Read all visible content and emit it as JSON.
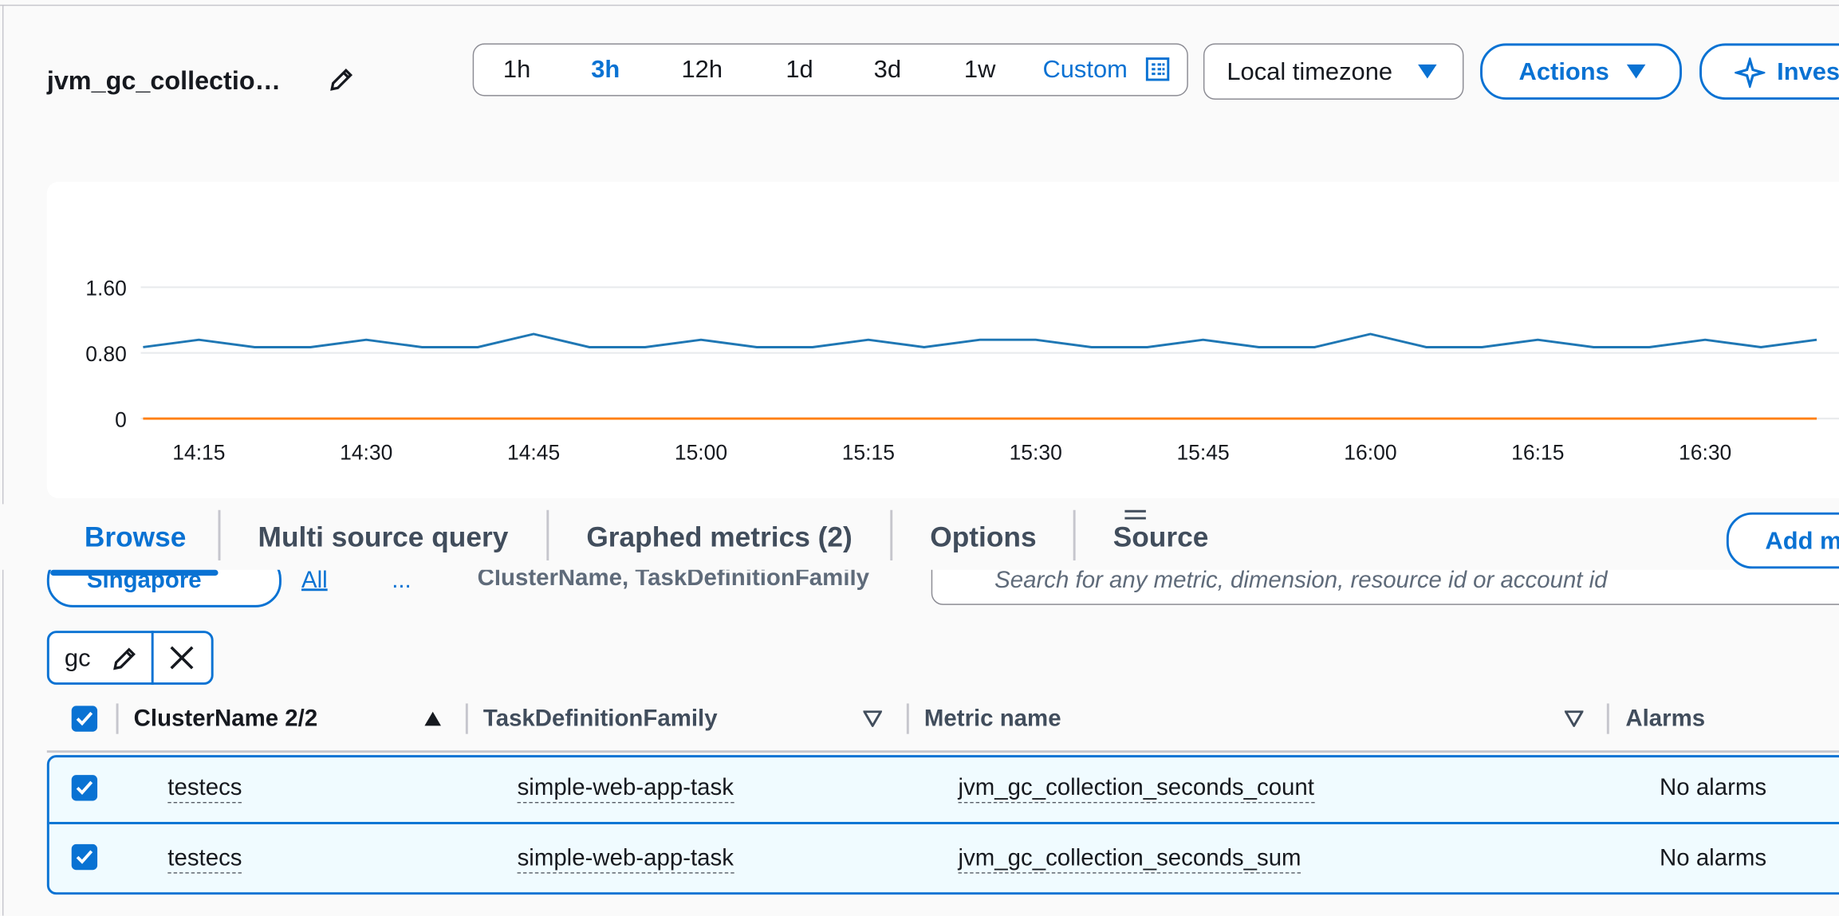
{
  "header": {
    "title": "jvm_gc_collectio…",
    "time_ranges": [
      "1h",
      "3h",
      "12h",
      "1d",
      "3d",
      "1w"
    ],
    "custom": "Custom",
    "timezone": "Local timezone",
    "actions": "Actions",
    "investigate": "Inves"
  },
  "chart": {
    "type": "line",
    "x": [
      "14:10",
      "14:15",
      "14:20",
      "14:25",
      "14:30",
      "14:35",
      "14:40",
      "14:45",
      "14:50",
      "14:55",
      "15:00",
      "15:05",
      "15:10",
      "15:15",
      "15:20",
      "15:25",
      "15:30",
      "15:35",
      "15:40",
      "15:45",
      "15:50",
      "15:55",
      "16:00",
      "16:05",
      "16:10",
      "16:15",
      "16:20",
      "16:25",
      "16:30",
      "16:35",
      "16:40"
    ],
    "series": [
      {
        "color": "#1f77b4",
        "values": [
          0.87,
          0.96,
          0.87,
          0.87,
          0.96,
          0.87,
          0.87,
          1.03,
          0.87,
          0.87,
          0.96,
          0.87,
          0.87,
          0.96,
          0.87,
          0.96,
          0.96,
          0.87,
          0.87,
          0.96,
          0.87,
          0.87,
          1.03,
          0.87,
          0.87,
          0.96,
          0.87,
          0.87,
          0.96,
          0.87,
          0.96
        ]
      },
      {
        "color": "#ff7f0e",
        "values": [
          0,
          0,
          0,
          0,
          0,
          0,
          0,
          0,
          0,
          0,
          0,
          0,
          0,
          0,
          0,
          0,
          0,
          0,
          0,
          0,
          0,
          0,
          0,
          0,
          0,
          0,
          0,
          0,
          0,
          0,
          0
        ]
      }
    ],
    "xlim": [
      "14:10",
      "16:42"
    ],
    "xticks": [
      "14:15",
      "14:30",
      "14:45",
      "15:00",
      "15:15",
      "15:30",
      "15:45",
      "16:00",
      "16:15",
      "16:30"
    ],
    "ylim": [
      0,
      1.6
    ],
    "yticks": [
      0,
      {
        "value": 0.8,
        "label": "0.80"
      },
      {
        "value": 1.6,
        "label": "1.60"
      }
    ],
    "grid": true
  },
  "tabs": [
    "Browse",
    "Multi source query",
    "Graphed metrics (2)",
    "Options",
    "Source"
  ],
  "add_button": "Add m",
  "browse": {
    "region": "Singapore",
    "breadcrumb": [
      "All",
      "...",
      "ClusterName, TaskDefinitionFamily"
    ],
    "search_placeholder": "Search for any metric, dimension, resource id or account id"
  },
  "filter": "gc",
  "table": {
    "columns": [
      "ClusterName 2/2",
      "TaskDefinitionFamily",
      "Metric name",
      "Alarms"
    ],
    "rows": [
      [
        "testecs",
        "simple-web-app-task",
        "jvm_gc_collection_seconds_count",
        "No alarms"
      ],
      [
        "testecs",
        "simple-web-app-task",
        "jvm_gc_collection_seconds_sum",
        "No alarms"
      ]
    ]
  }
}
